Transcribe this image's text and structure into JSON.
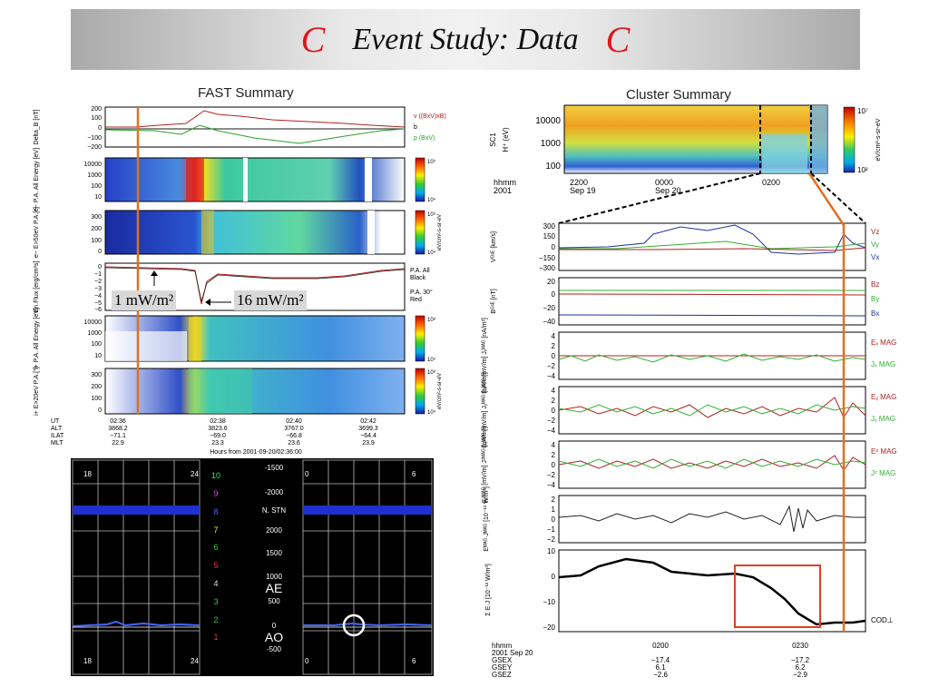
{
  "title": {
    "text": "Event Study: Data",
    "glyph": "C"
  },
  "fast": {
    "title": "FAST Summary",
    "row1": {
      "ylabel": "Delta_B [nT]",
      "ticks": [
        "200",
        "100",
        "0",
        "−100",
        "−200"
      ],
      "legend": [
        "v ((BxV)xB)",
        "b",
        "p (BxV)"
      ]
    },
    "row2": {
      "ylabel": "e− P.A. All Energy [eV]",
      "ticks": [
        "10000",
        "1000",
        "100",
        "10"
      ],
      "scale": [
        "10⁹",
        "10⁴"
      ]
    },
    "row3": {
      "ylabel": "e− E>50eV P.A.[°]",
      "ticks": [
        "300",
        "200",
        "100",
        "0"
      ],
      "scale": [
        "10⁹",
        "10⁴"
      ],
      "unit": "eV/cm²-s-sr-eV"
    },
    "row4": {
      "ylabel": "En.Flux [erg/cm²s]",
      "ticks": [
        "0",
        "−1",
        "−2",
        "−3",
        "−4",
        "−5",
        "−6"
      ],
      "legend": [
        "P.A. All",
        "Black",
        "P.A. 30°",
        "Red"
      ]
    },
    "row5": {
      "ylabel": "i+ P.A. All Energy [eV]",
      "ticks": [
        "10000",
        "1000",
        "100",
        "10"
      ],
      "scale": [
        "10⁸",
        "10⁴"
      ]
    },
    "row6": {
      "ylabel": "i+ E>20eV P.A.[°]",
      "ticks": [
        "300",
        "200",
        "100",
        "0"
      ],
      "scale": [
        "10⁸",
        "10⁴"
      ],
      "unit": "eV/cm²-s-sr-eV"
    },
    "ann1": "1 mW/m²",
    "ann2": "16 mW/m²",
    "axis": {
      "labels": [
        "UT",
        "ALT",
        "ILAT",
        "MLT"
      ],
      "cols": [
        [
          "02:36",
          "3868.2",
          "−71.1",
          "22.9"
        ],
        [
          "02:38",
          "3823.6",
          "−69.0",
          "23.3"
        ],
        [
          "02:40",
          "3767.0",
          "−66.8",
          "23.6"
        ],
        [
          "02:42",
          "3699.3",
          "−64.4",
          "23.9"
        ]
      ],
      "footer": "Hours from 2001-09-20/02:36:00"
    }
  },
  "magneto": {
    "left": {
      "top_ticks": [
        "18",
        "24"
      ],
      "bottom_ticks": [
        "18",
        "24"
      ]
    },
    "right": {
      "top_ticks": [
        "0",
        "6"
      ],
      "bottom_ticks": [
        "0",
        "6"
      ]
    },
    "middle_ticks": [
      "-1500",
      "-2000",
      "N. STN",
      "2000",
      "1500",
      "1000",
      "500",
      "0",
      "-500"
    ],
    "stations": [
      "10",
      "9",
      "8",
      "7",
      "6",
      "5",
      "4",
      "3",
      "2",
      "1"
    ],
    "station_colors": [
      "#33ee66",
      "#ee44ee",
      "#4466ff",
      "#eeee33",
      "#33cc33",
      "#ee3333",
      "#dddddd",
      "#33cc33",
      "#33cc33",
      "#ee3333"
    ],
    "ae": "AE",
    "ao": "AO"
  },
  "cluster": {
    "title": "Cluster Summary",
    "spec": {
      "sc": "SC1",
      "yl": "H⁺ (eV)",
      "ticks": [
        "10000",
        "1000",
        "100"
      ],
      "scale_hi": "10⁷",
      "scale_lo": "10²",
      "unit": "eV/cm²-s-sr-eV",
      "x_head": [
        "hhmm",
        "2001"
      ],
      "x_ticks": [
        "2200",
        "0000",
        "0200"
      ],
      "x_dates": [
        "Sep 19",
        "Sep 20"
      ]
    },
    "panels": [
      {
        "ylabel": "Vᴳˢᴱ [km/s]",
        "ticks": [
          "300",
          "150",
          "0",
          "−150",
          "−300"
        ],
        "legend": [
          "Vz",
          "Vy",
          "Vx"
        ]
      },
      {
        "ylabel": "Bᴳˢᴱ [nT]",
        "ticks": [
          "20",
          "0",
          "−20",
          "−40"
        ],
        "legend": [
          "Bz",
          "By",
          "Bx"
        ]
      },
      {
        "ylabel": "Eₓᴹᴬᴳ [mV/m] Jₓᴹᴬᴳ [nA/m²]",
        "ticks": [
          "4",
          "2",
          "0",
          "−2",
          "−4"
        ],
        "legend": [
          "Eₓ MAG",
          "Jₓ MAG"
        ]
      },
      {
        "ylabel": "Eᵧᴹᴬᴳ [mV/m] Jᵧᴹᴬᴳ [nA/m²]",
        "ticks": [
          "4",
          "2",
          "0",
          "−2",
          "−4"
        ],
        "legend": [
          "Eᵧ MAG",
          "Jᵧ MAG"
        ]
      },
      {
        "ylabel": "Eᶻᴹᴬᴳ [mV/m] Jᶻᴹᴬᴳ [nA/m²]",
        "ticks": [
          "4",
          "2",
          "0",
          "−2",
          "−4"
        ],
        "legend": [
          "Eᶻ MAG",
          "Jᶻ MAG"
        ]
      },
      {
        "ylabel": "Eᴹᴬᴳ·Jᴹᴬᴳ [10⁻¹² W/m³]",
        "ticks": [
          "2",
          "1",
          "0",
          "−1",
          "−2"
        ],
        "legend": []
      },
      {
        "ylabel": "Σ E·J [10⁻¹² W/m³]",
        "ticks": [
          "10",
          "0",
          "−10",
          "−20"
        ],
        "legend": [
          "COD⊥"
        ]
      }
    ],
    "axis": {
      "head": [
        "hhmm",
        "2001  Sep 20",
        "GSEX",
        "GSEY",
        "GSEZ"
      ],
      "ticks": [
        "0200",
        "0230"
      ],
      "cols": [
        [
          "−17.4",
          "6.1",
          "−2.6"
        ],
        [
          "−17.2",
          "6.2",
          "−2.9"
        ]
      ]
    }
  }
}
